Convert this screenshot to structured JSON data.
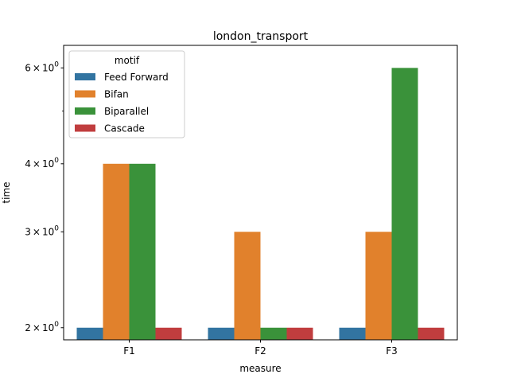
{
  "chart_data": {
    "type": "bar",
    "title": "london_transport",
    "xlabel": "measure",
    "ylabel": "time",
    "yscale": "log",
    "ylim": [
      1.9,
      6.6
    ],
    "yticks": [
      {
        "value": 2,
        "base": "2",
        "exp": "0"
      },
      {
        "value": 3,
        "base": "3",
        "exp": "0"
      },
      {
        "value": 4,
        "base": "4",
        "exp": "0"
      },
      {
        "value": 6,
        "base": "6",
        "exp": "0"
      }
    ],
    "categories": [
      "F1",
      "F2",
      "F3"
    ],
    "legend_title": "motif",
    "legend_position": "top-left",
    "grid": false,
    "series": [
      {
        "name": "Feed Forward",
        "color": "#3274a1",
        "values": [
          2,
          2,
          2
        ]
      },
      {
        "name": "Bifan",
        "color": "#e1812c",
        "values": [
          4,
          3,
          3
        ]
      },
      {
        "name": "Biparallel",
        "color": "#3a923a",
        "values": [
          4,
          2,
          6
        ]
      },
      {
        "name": "Cascade",
        "color": "#c03d3e",
        "values": [
          2,
          2,
          2
        ]
      }
    ]
  }
}
